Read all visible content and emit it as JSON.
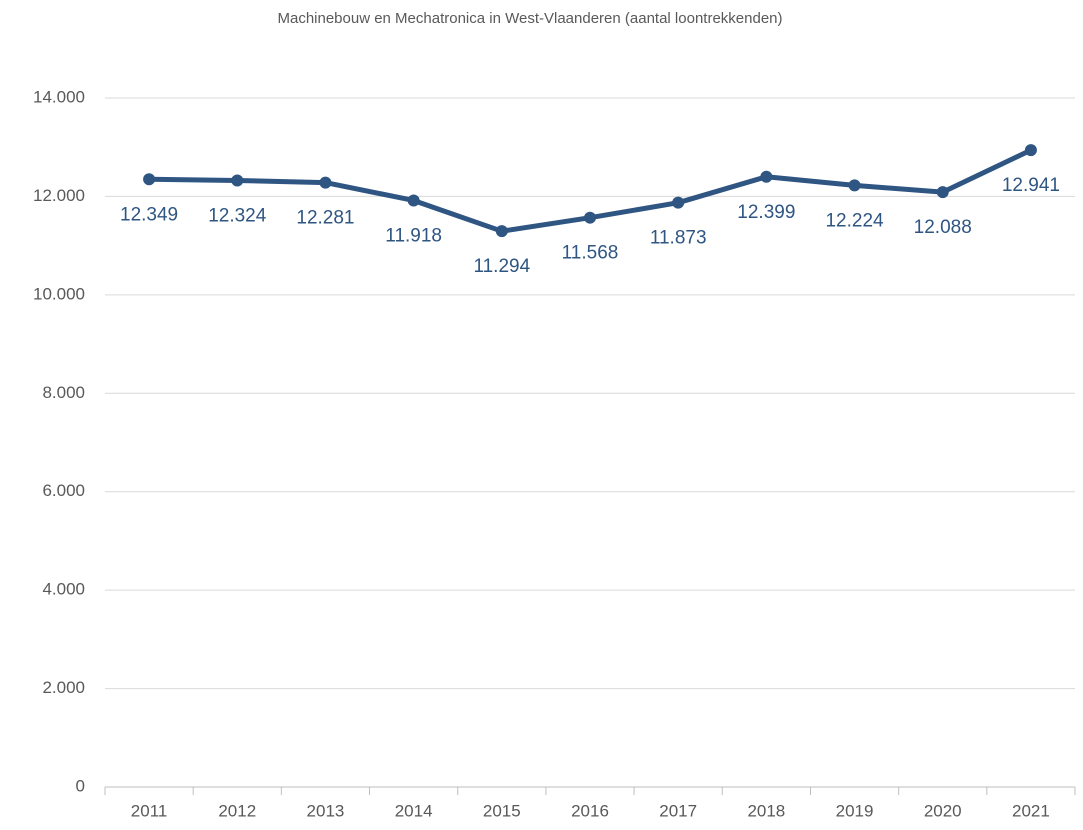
{
  "chart_data": {
    "type": "line",
    "title": "Machinebouw en Mechatronica in West-Vlaanderen (aantal loontrekkenden)",
    "categories": [
      "2011",
      "2012",
      "2013",
      "2014",
      "2015",
      "2016",
      "2017",
      "2018",
      "2019",
      "2020",
      "2021"
    ],
    "values": [
      12349,
      12324,
      12281,
      11918,
      11294,
      11568,
      11873,
      12399,
      12224,
      12088,
      12941
    ],
    "value_labels": [
      "12.349",
      "12.324",
      "12.281",
      "11.918",
      "11.294",
      "11.568",
      "11.873",
      "12.399",
      "12.224",
      "12.088",
      "12.941"
    ],
    "color": "#2f5582",
    "ylim": [
      0,
      14000
    ],
    "yticks": [
      0,
      {
        "value": 2000,
        "label": "2.000"
      },
      {
        "value": 4000,
        "label": "4.000"
      },
      {
        "value": 6000,
        "label": "6.000"
      },
      {
        "value": 8000,
        "label": "8.000"
      },
      {
        "value": 10000,
        "label": "10.000"
      },
      {
        "value": 12000,
        "label": "12.000"
      },
      {
        "value": 14000,
        "label": "14.000"
      }
    ],
    "grid": true
  }
}
